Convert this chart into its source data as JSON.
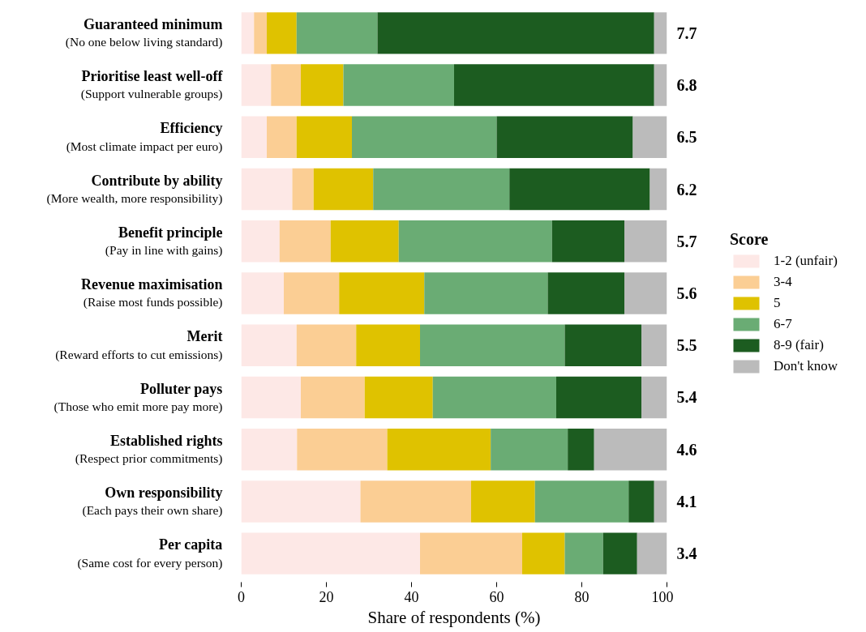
{
  "chart_data": {
    "type": "bar",
    "orientation": "horizontal",
    "stacked": true,
    "xlabel": "Share of respondents (%)",
    "legend_title": "Score",
    "legend": "right",
    "grid": false,
    "xlim": [
      0,
      100
    ],
    "xticks": [
      0,
      20,
      40,
      60,
      80,
      100
    ],
    "categories": [
      "Guaranteed minimum\n(No one below living standard)",
      "Prioritise least well-off\n(Support vulnerable groups)",
      "Efficiency\n(Most climate impact per euro)",
      "Contribute by ability\n(More wealth, more responsibility)",
      "Benefit principle\n(Pay in line with gains)",
      "Revenue maximisation\n(Raise most funds possible)",
      "Merit\n(Reward efforts to cut emissions)",
      "Polluter pays\n(Those who emit more pay more)",
      "Established rights\n(Respect prior commitments)",
      "Own responsibility\n(Each pays their own share)",
      "Per capita\n(Same cost for every person)"
    ],
    "series": [
      {
        "name": "1-2 (unfair)",
        "color": "#fde8e6",
        "values": [
          3,
          7,
          6,
          12,
          9,
          10,
          13,
          14,
          13.1,
          28,
          42
        ]
      },
      {
        "name": "3-4",
        "color": "#fbce94",
        "values": [
          3,
          7,
          7,
          5,
          12,
          13,
          14,
          15,
          21.2,
          26,
          24
        ]
      },
      {
        "name": "5",
        "color": "#dfc200",
        "values": [
          7,
          10,
          13,
          14,
          16,
          20,
          15,
          16,
          24.3,
          15,
          10
        ]
      },
      {
        "name": "6-7",
        "color": "#6aac74",
        "values": [
          19,
          26,
          34,
          32,
          36,
          29,
          34,
          29,
          18.1,
          22,
          9
        ]
      },
      {
        "name": "8-9 (fair)",
        "color": "#1c5c20",
        "values": [
          65,
          47,
          32,
          33,
          17,
          18,
          18,
          20,
          6.2,
          6,
          8
        ]
      },
      {
        "name": "Don't know",
        "color": "#bbbbbb",
        "values": [
          3,
          3,
          8,
          4,
          10,
          10,
          6,
          6,
          17.1,
          3,
          7
        ]
      }
    ],
    "annotations": [
      "7.7",
      "6.8",
      "6.5",
      "6.2",
      "5.7",
      "5.6",
      "5.5",
      "5.4",
      "4.6",
      "4.1",
      "3.4"
    ]
  }
}
